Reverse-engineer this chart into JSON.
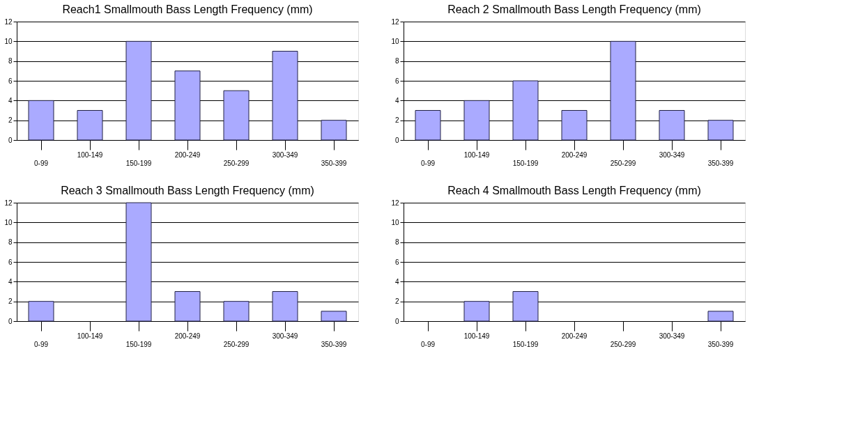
{
  "chart_data": [
    {
      "type": "bar",
      "title": "Reach1 Smallmouth Bass Length Frequency (mm)",
      "categories": [
        "0-99",
        "100-149",
        "150-199",
        "200-249",
        "250-299",
        "300-349",
        "350-399"
      ],
      "values": [
        4,
        3,
        10,
        7,
        5,
        9,
        2
      ],
      "color": "#aaaaff",
      "ylim": [
        0,
        12
      ],
      "yticks": [
        0,
        2,
        4,
        6,
        8,
        10,
        12
      ],
      "grid": "y"
    },
    {
      "type": "bar",
      "title": "Reach 2 Smallmouth Bass Length Frequency (mm)",
      "categories": [
        "0-99",
        "100-149",
        "150-199",
        "200-249",
        "250-299",
        "300-349",
        "350-399"
      ],
      "values": [
        3,
        4,
        6,
        3,
        10,
        3,
        2
      ],
      "color": "#aaaaff",
      "ylim": [
        0,
        12
      ],
      "yticks": [
        0,
        2,
        4,
        6,
        8,
        10,
        12
      ],
      "grid": "y"
    },
    {
      "type": "bar",
      "title": "Reach 3 Smallmouth Bass Length Frequency (mm)",
      "categories": [
        "0-99",
        "100-149",
        "150-199",
        "200-249",
        "250-299",
        "300-349",
        "350-399"
      ],
      "values": [
        2,
        0,
        12,
        3,
        2,
        3,
        1
      ],
      "color": "#aaaaff",
      "ylim": [
        0,
        12
      ],
      "yticks": [
        0,
        2,
        4,
        6,
        8,
        10,
        12
      ],
      "grid": "y"
    },
    {
      "type": "bar",
      "title": "Reach 4 Smallmouth Bass Length Frequency (mm)",
      "categories": [
        "0-99",
        "100-149",
        "150-199",
        "200-249",
        "250-299",
        "300-349",
        "350-399"
      ],
      "values": [
        0,
        2,
        3,
        0,
        0,
        0,
        1
      ],
      "color": "#aaaaff",
      "ylim": [
        0,
        12
      ],
      "yticks": [
        0,
        2,
        4,
        6,
        8,
        10,
        12
      ],
      "grid": "y"
    }
  ]
}
